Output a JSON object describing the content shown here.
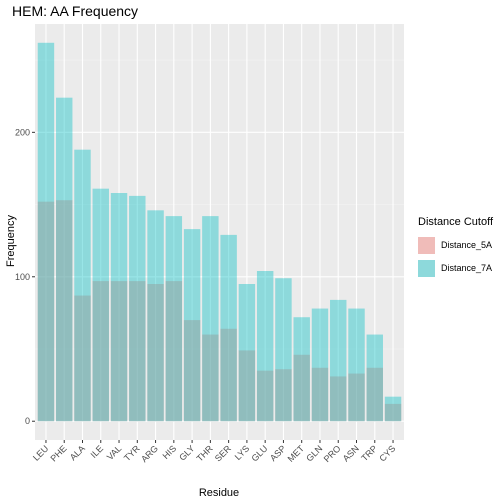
{
  "chart_data": {
    "type": "bar",
    "title": "HEM: AA Frequency",
    "xlabel": "Residue",
    "ylabel": "Frequency",
    "categories": [
      "LEU",
      "PHE",
      "ALA",
      "ILE",
      "VAL",
      "TYR",
      "ARG",
      "HIS",
      "GLY",
      "THR",
      "SER",
      "LYS",
      "GLU",
      "ASP",
      "MET",
      "GLN",
      "PRO",
      "ASN",
      "TRP",
      "CYS"
    ],
    "series": [
      {
        "name": "Distance_5A",
        "values": [
          152,
          153,
          87,
          97,
          97,
          97,
          95,
          97,
          70,
          60,
          64,
          49,
          35,
          36,
          46,
          37,
          31,
          33,
          37,
          12
        ],
        "color": "#F8766D"
      },
      {
        "name": "Distance_7A",
        "values": [
          262,
          224,
          188,
          161,
          158,
          156,
          146,
          142,
          133,
          142,
          129,
          95,
          104,
          99,
          72,
          78,
          84,
          78,
          60,
          17
        ],
        "color": "#00BFC4"
      }
    ],
    "overlay": true,
    "bar_opacity": 0.4,
    "ylim": [
      -13,
      275
    ],
    "yticks": [
      0,
      100,
      200
    ],
    "grid": true,
    "legend": {
      "title": "Distance Cutoff",
      "placement": "right"
    }
  }
}
